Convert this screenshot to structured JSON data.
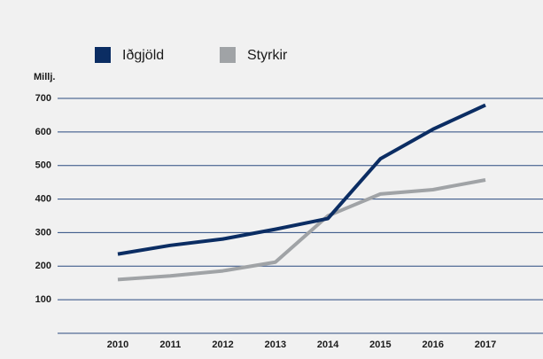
{
  "chart_data": {
    "type": "line",
    "y_label": "Millj.",
    "categories": [
      "2010",
      "2011",
      "2012",
      "2013",
      "2014",
      "2015",
      "2016",
      "2017"
    ],
    "series": [
      {
        "name": "Iðgjöld",
        "color": "#0b2d63",
        "values": [
          236,
          262,
          281,
          310,
          342,
          520,
          608,
          680
        ]
      },
      {
        "name": "Styrkir",
        "color": "#a0a3a6",
        "values": [
          160,
          171,
          186,
          212,
          350,
          415,
          428,
          457
        ]
      }
    ],
    "ylim": [
      0,
      700
    ],
    "yticks": [
      100,
      200,
      300,
      400,
      500,
      600,
      700
    ],
    "grid": true
  }
}
